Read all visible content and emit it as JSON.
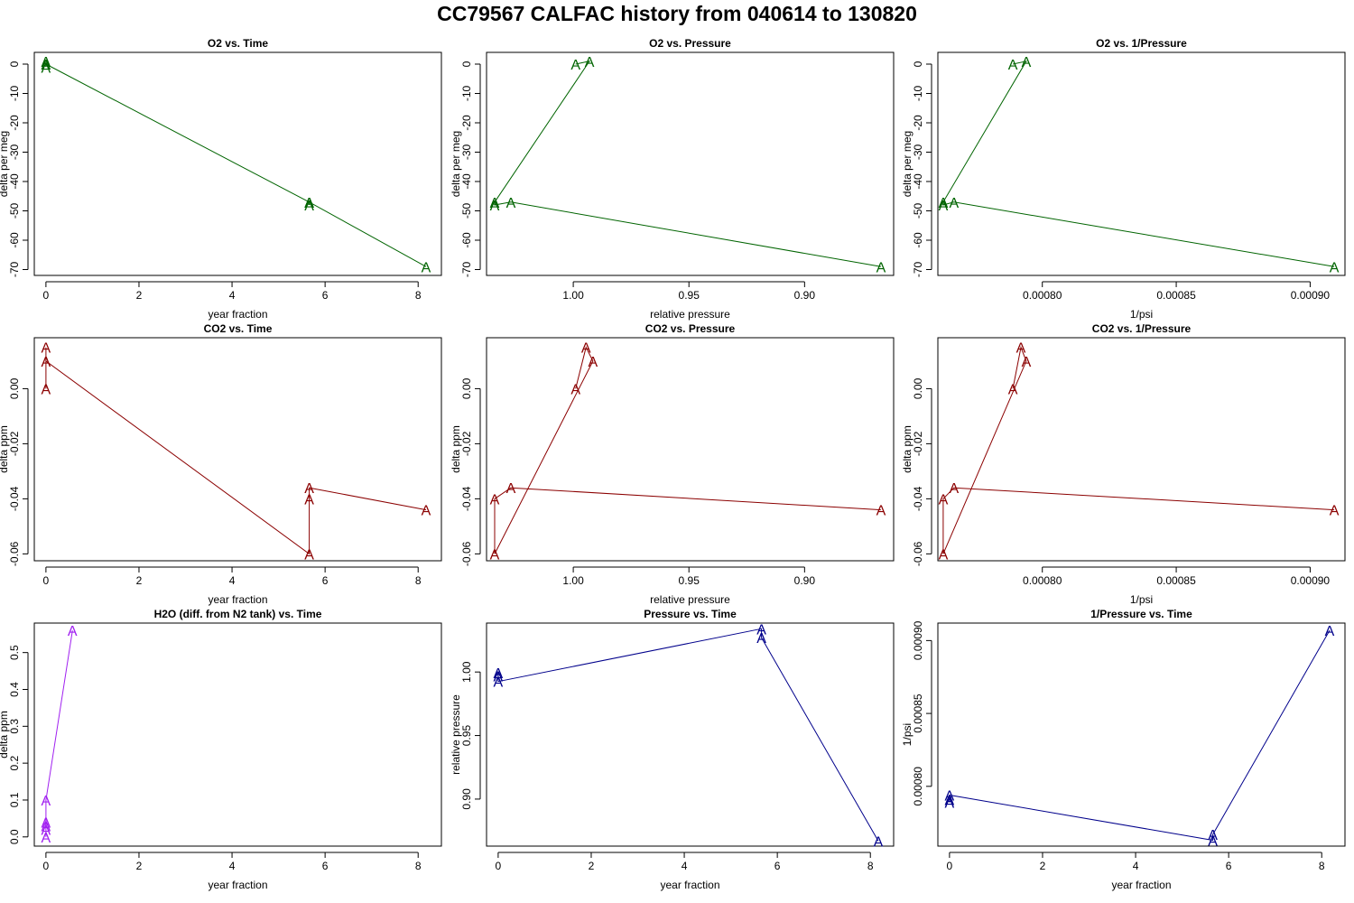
{
  "title": "CC79567   CALFAC history from  040614  to  130820",
  "colors": {
    "o2": "#006400",
    "co2": "#8b0000",
    "h2o": "#a020f0",
    "pressure": "#00008b"
  },
  "marker_symbol": "A",
  "chart_data": [
    {
      "type": "line",
      "title": "O2 vs. Time",
      "xlabel": "year fraction",
      "ylabel": "delta per meg",
      "color": "o2",
      "x": [
        0,
        0,
        0,
        5.66,
        5.66,
        5.66,
        8.17
      ],
      "y": [
        1,
        -1,
        0,
        -47,
        -48,
        -47,
        -69
      ],
      "xlim": [
        -0.25,
        8.5
      ],
      "ylim": [
        -72,
        4
      ],
      "xticks": [
        0,
        2,
        4,
        6,
        8
      ],
      "xtick_labels": [
        "0",
        "2",
        "4",
        "6",
        "8"
      ],
      "yticks": [
        0,
        -10,
        -20,
        -30,
        -40,
        -50,
        -60,
        -70
      ],
      "ytick_labels": [
        "0",
        "-10",
        "-20",
        "-30",
        "-40",
        "-50",
        "-60",
        "-70"
      ]
    },
    {
      "type": "line",
      "title": "O2 vs. Pressure",
      "xlabel": "relative pressure",
      "ylabel": "delta per meg",
      "color": "o2",
      "x": [
        0.999,
        0.993,
        1.034,
        1.034,
        1.027,
        0.867
      ],
      "y": [
        0,
        1,
        -47,
        -48,
        -47,
        -69
      ],
      "xlim": [
        1.0375,
        0.8615
      ],
      "ylim": [
        -72,
        4
      ],
      "xticks": [
        1.0,
        0.95,
        0.9
      ],
      "xtick_labels": [
        "1.00",
        "0.95",
        "0.90"
      ],
      "yticks": [
        0,
        -10,
        -20,
        -30,
        -40,
        -50,
        -60,
        -70
      ],
      "ytick_labels": [
        "0",
        "-10",
        "-20",
        "-30",
        "-40",
        "-50",
        "-60",
        "-70"
      ]
    },
    {
      "type": "line",
      "title": "O2 vs. 1/Pressure",
      "xlabel": "1/psi",
      "ylabel": "delta per meg",
      "color": "o2",
      "x": [
        0.000789,
        0.000794,
        0.000763,
        0.000763,
        0.000767,
        0.000909
      ],
      "y": [
        0,
        1,
        -47,
        -48,
        -47,
        -69
      ],
      "xlim": [
        0.000761,
        0.000913
      ],
      "ylim": [
        -72,
        4
      ],
      "xticks": [
        0.0008,
        0.00085,
        0.0009
      ],
      "xtick_labels": [
        "0.00080",
        "0.00085",
        "0.00090"
      ],
      "yticks": [
        0,
        -10,
        -20,
        -30,
        -40,
        -50,
        -60,
        -70
      ],
      "ytick_labels": [
        "0",
        "-10",
        "-20",
        "-30",
        "-40",
        "-50",
        "-60",
        "-70"
      ]
    },
    {
      "type": "line",
      "title": "CO2 vs. Time",
      "xlabel": "year fraction",
      "ylabel": "delta ppm",
      "color": "co2",
      "x": [
        0,
        0,
        0,
        5.66,
        5.66,
        5.66,
        8.17
      ],
      "y": [
        0.015,
        0.0,
        0.01,
        -0.06,
        -0.04,
        -0.036,
        -0.044
      ],
      "xlim": [
        -0.25,
        8.5
      ],
      "ylim": [
        -0.0625,
        0.0185
      ],
      "xticks": [
        0,
        2,
        4,
        6,
        8
      ],
      "xtick_labels": [
        "0",
        "2",
        "4",
        "6",
        "8"
      ],
      "yticks": [
        0.0,
        -0.02,
        -0.04,
        -0.06
      ],
      "ytick_labels": [
        "0.00",
        "-0.02",
        "-0.04",
        "-0.06"
      ]
    },
    {
      "type": "line",
      "title": "CO2 vs. Pressure",
      "xlabel": "relative pressure",
      "ylabel": "delta ppm",
      "color": "co2",
      "x": [
        0.999,
        0.9945,
        0.9915,
        1.034,
        1.034,
        1.027,
        0.867
      ],
      "y": [
        0.0,
        0.015,
        0.01,
        -0.06,
        -0.04,
        -0.036,
        -0.044
      ],
      "xlim": [
        1.0375,
        0.8615
      ],
      "ylim": [
        -0.0625,
        0.0185
      ],
      "xticks": [
        1.0,
        0.95,
        0.9
      ],
      "xtick_labels": [
        "1.00",
        "0.95",
        "0.90"
      ],
      "yticks": [
        0.0,
        -0.02,
        -0.04,
        -0.06
      ],
      "ytick_labels": [
        "0.00",
        "-0.02",
        "-0.04",
        "-0.06"
      ]
    },
    {
      "type": "line",
      "title": "CO2 vs. 1/Pressure",
      "xlabel": "1/psi",
      "ylabel": "delta ppm",
      "color": "co2",
      "x": [
        0.000789,
        0.000792,
        0.000794,
        0.000763,
        0.000763,
        0.000767,
        0.000909
      ],
      "y": [
        0.0,
        0.015,
        0.01,
        -0.06,
        -0.04,
        -0.036,
        -0.044
      ],
      "xlim": [
        0.000761,
        0.000913
      ],
      "ylim": [
        -0.0625,
        0.0185
      ],
      "xticks": [
        0.0008,
        0.00085,
        0.0009
      ],
      "xtick_labels": [
        "0.00080",
        "0.00085",
        "0.00090"
      ],
      "yticks": [
        0.0,
        -0.02,
        -0.04,
        -0.06
      ],
      "ytick_labels": [
        "0.00",
        "-0.02",
        "-0.04",
        "-0.06"
      ]
    },
    {
      "type": "line",
      "title": "H2O (diff. from N2 tank) vs. Time",
      "xlabel": "year fraction",
      "ylabel": "delta ppm",
      "color": "h2o",
      "x": [
        0,
        0,
        0,
        0,
        0,
        0.57
      ],
      "y": [
        0.0,
        0.02,
        0.04,
        0.03,
        0.1,
        0.56
      ],
      "xlim": [
        -0.25,
        8.5
      ],
      "ylim": [
        -0.025,
        0.58
      ],
      "xticks": [
        0,
        2,
        4,
        6,
        8
      ],
      "xtick_labels": [
        "0",
        "2",
        "4",
        "6",
        "8"
      ],
      "yticks": [
        0.0,
        0.1,
        0.2,
        0.3,
        0.4,
        0.5
      ],
      "ytick_labels": [
        "0.0",
        "0.1",
        "0.2",
        "0.3",
        "0.4",
        "0.5"
      ]
    },
    {
      "type": "line",
      "title": "Pressure vs. Time",
      "xlabel": "year fraction",
      "ylabel": "relative pressure",
      "color": "pressure",
      "x": [
        0,
        0,
        0,
        5.66,
        5.66,
        8.17
      ],
      "y": [
        0.9995,
        0.997,
        0.9925,
        1.034,
        1.027,
        0.867
      ],
      "xlim": [
        -0.25,
        8.5
      ],
      "ylim": [
        0.863,
        1.0385
      ],
      "xticks": [
        0,
        2,
        4,
        6,
        8
      ],
      "xtick_labels": [
        "0",
        "2",
        "4",
        "6",
        "8"
      ],
      "yticks": [
        0.9,
        0.95,
        1.0
      ],
      "ytick_labels": [
        "0.90",
        "0.95",
        "1.00"
      ]
    },
    {
      "type": "line",
      "title": "1/Pressure vs. Time",
      "xlabel": "year fraction",
      "ylabel": "1/psi",
      "color": "pressure",
      "x": [
        0,
        0,
        0,
        5.66,
        5.66,
        8.17
      ],
      "y": [
        0.000789,
        0.000791,
        0.000794,
        0.000763,
        0.000767,
        0.000907
      ],
      "xlim": [
        -0.25,
        8.5
      ],
      "ylim": [
        0.000759,
        0.000912
      ],
      "xticks": [
        0,
        2,
        4,
        6,
        8
      ],
      "xtick_labels": [
        "0",
        "2",
        "4",
        "6",
        "8"
      ],
      "yticks": [
        0.0008,
        0.00085,
        0.0009
      ],
      "ytick_labels": [
        "0.00080",
        "0.00085",
        "0.00090"
      ]
    }
  ]
}
